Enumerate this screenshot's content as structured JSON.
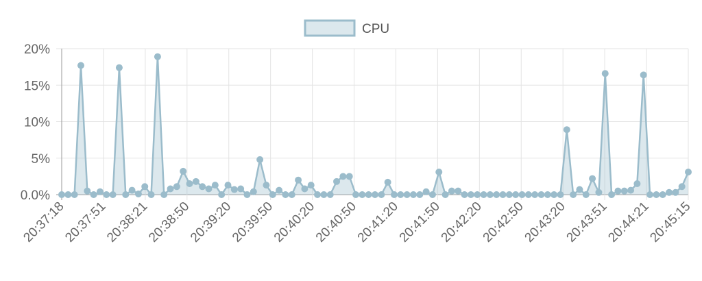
{
  "chart_data": {
    "type": "area",
    "series": [
      {
        "name": "CPU",
        "color": "#9bbccb",
        "fill": "rgba(155,188,203,0.35)",
        "values": [
          0.0,
          0.0,
          0.0,
          17.7,
          0.5,
          0.0,
          0.4,
          0.0,
          0.0,
          17.4,
          0.0,
          0.6,
          0.1,
          1.1,
          0.0,
          18.9,
          0.0,
          0.8,
          1.1,
          3.2,
          1.5,
          1.8,
          1.1,
          0.8,
          1.3,
          0.0,
          1.3,
          0.7,
          0.8,
          0.0,
          0.4,
          4.8,
          1.3,
          0.0,
          0.6,
          0.0,
          0.0,
          2.0,
          0.8,
          1.3,
          0.0,
          0.0,
          0.0,
          1.8,
          2.5,
          2.5,
          0.0,
          0.0,
          0.0,
          0.0,
          0.0,
          1.7,
          0.0,
          0.0,
          0.0,
          0.0,
          0.0,
          0.4,
          0.0,
          3.1,
          0.0,
          0.5,
          0.5,
          0.0,
          0.0,
          0.0,
          0.0,
          0.0,
          0.0,
          0.0,
          0.0,
          0.0,
          0.0,
          0.0,
          0.0,
          0.0,
          0.0,
          0.0,
          0.0,
          8.9,
          0.0,
          0.7,
          0.0,
          2.2,
          0.3,
          16.6,
          0.0,
          0.5,
          0.5,
          0.6,
          1.5,
          16.4,
          0.0,
          0.0,
          0.0,
          0.3,
          0.3,
          1.1,
          3.1
        ]
      }
    ],
    "x_tick_labels": [
      "20:37:18",
      "20:37:51",
      "20:38:21",
      "20:38:50",
      "20:39:20",
      "20:39:50",
      "20:40:20",
      "20:40:50",
      "20:41:20",
      "20:41:50",
      "20:42:20",
      "20:42:50",
      "20:43:20",
      "20:43:51",
      "20:44:21",
      "20:45:15"
    ],
    "y_ticks": [
      "20%",
      "15%",
      "10%",
      "5%",
      "0.0%"
    ],
    "ylim": [
      0,
      20
    ],
    "grid": true,
    "legend": "top-center"
  }
}
